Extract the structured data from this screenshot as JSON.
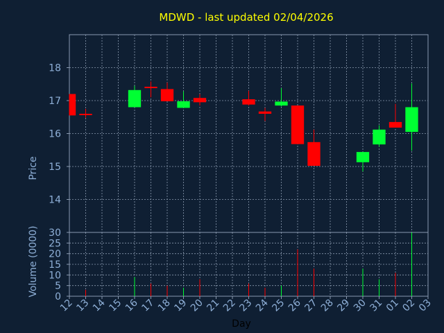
{
  "chart_data": {
    "type": "candlestick",
    "title": "MDWD - last updated 02/04/2026",
    "xlabel": "Day",
    "price_panel": {
      "ylabel": "Price",
      "ylim": [
        13.0,
        19.0
      ],
      "yticks": [
        14,
        15,
        16,
        17,
        18
      ]
    },
    "volume_panel": {
      "ylabel": "Volume (0000)",
      "ylim": [
        0,
        30
      ],
      "yticks": [
        0,
        5,
        10,
        15,
        20,
        25,
        30
      ]
    },
    "x_tick_labels": [
      "12",
      "13",
      "14",
      "15",
      "16",
      "17",
      "18",
      "19",
      "20",
      "21",
      "22",
      "23",
      "24",
      "25",
      "26",
      "27",
      "28",
      "29",
      "30",
      "31",
      "01",
      "02",
      "03"
    ],
    "candles": [
      {
        "day": "12",
        "open": 17.2,
        "high": 17.2,
        "low": 16.55,
        "close": 16.55,
        "volume": 0
      },
      {
        "day": "13",
        "open": 16.6,
        "high": 16.75,
        "low": 16.48,
        "close": 16.58,
        "volume": 3
      },
      {
        "day": "16",
        "open": 16.8,
        "high": 17.45,
        "low": 16.8,
        "close": 17.32,
        "volume": 9
      },
      {
        "day": "17",
        "open": 17.42,
        "high": 17.58,
        "low": 17.1,
        "close": 17.38,
        "volume": 6
      },
      {
        "day": "18",
        "open": 17.35,
        "high": 17.55,
        "low": 16.98,
        "close": 16.98,
        "volume": 5
      },
      {
        "day": "19",
        "open": 16.78,
        "high": 17.28,
        "low": 16.78,
        "close": 16.98,
        "volume": 4
      },
      {
        "day": "20",
        "open": 17.08,
        "high": 17.2,
        "low": 16.85,
        "close": 16.95,
        "volume": 8
      },
      {
        "day": "23",
        "open": 17.04,
        "high": 17.3,
        "low": 16.85,
        "close": 16.88,
        "volume": 6
      },
      {
        "day": "24",
        "open": 16.67,
        "high": 16.78,
        "low": 16.38,
        "close": 16.6,
        "volume": 4
      },
      {
        "day": "25",
        "open": 16.85,
        "high": 17.38,
        "low": 16.82,
        "close": 16.97,
        "volume": 5
      },
      {
        "day": "26",
        "open": 16.85,
        "high": 16.85,
        "low": 15.68,
        "close": 15.68,
        "volume": 22
      },
      {
        "day": "27",
        "open": 15.74,
        "high": 16.12,
        "low": 15.02,
        "close": 15.02,
        "volume": 13
      },
      {
        "day": "30",
        "open": 15.13,
        "high": 15.44,
        "low": 14.85,
        "close": 15.44,
        "volume": 13
      },
      {
        "day": "31",
        "open": 15.67,
        "high": 16.25,
        "low": 15.6,
        "close": 16.12,
        "volume": 8
      },
      {
        "day": "01",
        "open": 16.35,
        "high": 16.9,
        "low": 16.18,
        "close": 16.18,
        "volume": 11
      },
      {
        "day": "02",
        "open": 16.05,
        "high": 17.52,
        "low": 15.48,
        "close": 16.8,
        "volume": 30
      }
    ],
    "colors": {
      "background": "#0f1f33",
      "plot_background": "#0f1f33",
      "grid": "#8a9ab0",
      "axis_text": "#8fb0d8",
      "title": "#ffff00",
      "up": "#00ff33",
      "down": "#ff0000"
    },
    "grid": true
  }
}
